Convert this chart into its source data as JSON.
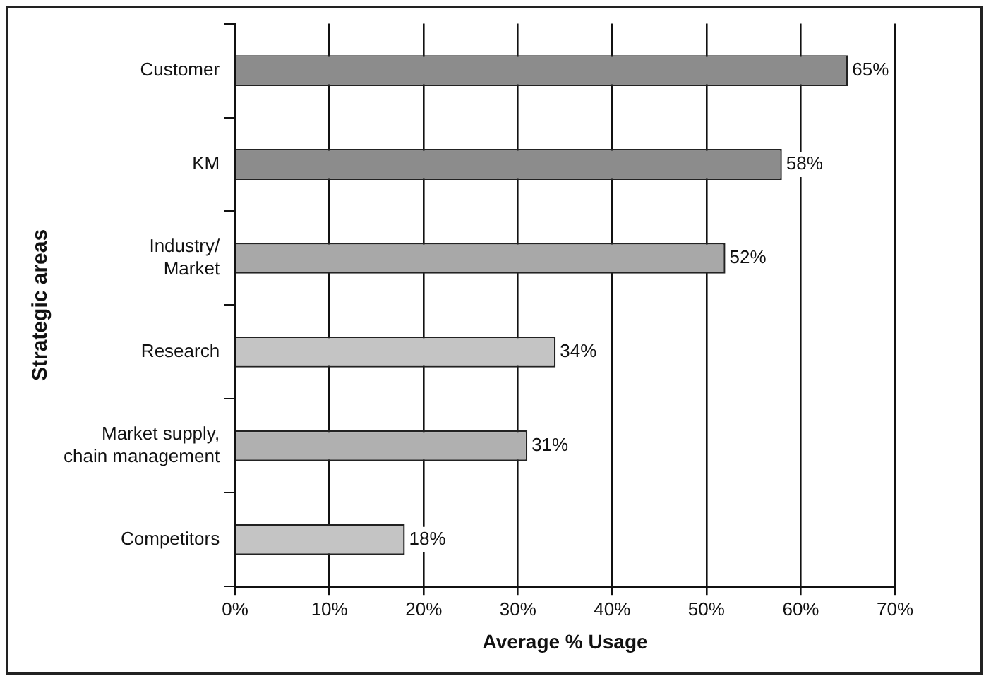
{
  "chart_data": {
    "type": "bar",
    "orientation": "horizontal",
    "xlabel": "Average % Usage",
    "ylabel": "Strategic areas",
    "categories": [
      "Customer",
      "KM",
      "Industry/\nMarket",
      "Research",
      "Market supply,\nchain management",
      "Competitors"
    ],
    "values": [
      65,
      58,
      52,
      34,
      31,
      18
    ],
    "colors": [
      "#8c8c8c",
      "#8c8c8c",
      "#a8a8a8",
      "#c4c4c4",
      "#b0b0b0",
      "#c4c4c4"
    ],
    "value_labels": [
      "65%",
      "58%",
      "52%",
      "34%",
      "31%",
      "18%"
    ],
    "xlim": [
      0,
      70
    ],
    "xticks": [
      {
        "value": 0,
        "label": "0%"
      },
      {
        "value": 10,
        "label": "10%"
      },
      {
        "value": 20,
        "label": "20%"
      },
      {
        "value": 30,
        "label": "30%"
      },
      {
        "value": 40,
        "label": "40%"
      },
      {
        "value": 50,
        "label": "50%"
      },
      {
        "value": 60,
        "label": "60%"
      },
      {
        "value": 70,
        "label": "70%"
      }
    ],
    "grid": "x"
  }
}
